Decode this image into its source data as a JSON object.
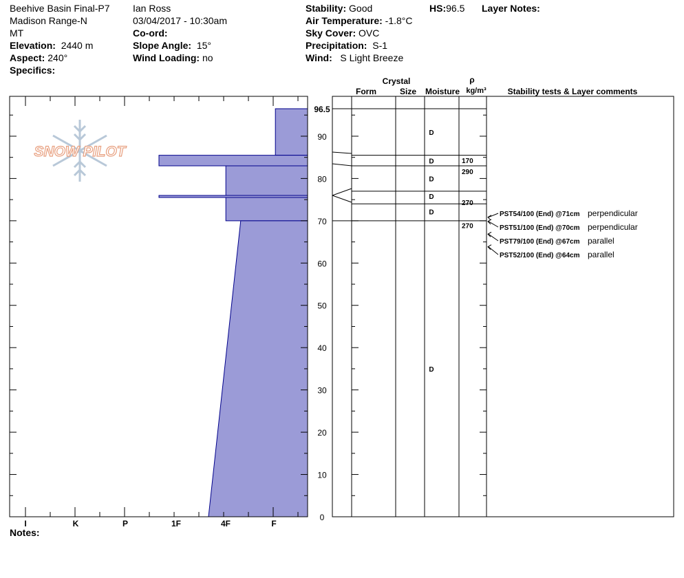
{
  "header": {
    "col1": {
      "site": "Beehive Basin Final-P7",
      "range": "Madison Range-N",
      "state": "MT",
      "elevation_label": "Elevation:",
      "elevation": "2440 m",
      "aspect_label": "Aspect:",
      "aspect": "240°",
      "specifics_label": "Specifics:"
    },
    "col2": {
      "observer": "Ian Ross",
      "datetime": "03/04/2017 - 10:30am",
      "coord_label": "Co-ord:",
      "slope_label": "Slope Angle:",
      "slope": "15°",
      "wind_loading_label": "Wind Loading:",
      "wind_loading": "no"
    },
    "col3": {
      "stability_label": "Stability:",
      "stability": "Good",
      "air_temp_label": "Air Temperature:",
      "air_temp": "-1.8°C",
      "sky_label": "Sky Cover:",
      "sky": "OVC",
      "precip_label": "Precipitation:",
      "precip": "S-1",
      "wind_label": "Wind:",
      "wind": "S Light Breeze"
    },
    "col4": {
      "hs_label": "HS:",
      "hs": "96.5",
      "layer_notes_label": "Layer Notes:"
    }
  },
  "logo": {
    "text": "SNOW PILOT",
    "color": "#e8a080"
  },
  "notes_label": "Notes:",
  "table_headers": {
    "crystal": "Crystal",
    "form": "Form",
    "size": "Size",
    "moisture": "Moisture",
    "rho": "ρ",
    "density_unit": "kg/m³",
    "comments": "Stability tests & Layer comments"
  },
  "colors": {
    "profile_fill": "#9b9bd7",
    "profile_stroke": "#00008b"
  },
  "chart_data": {
    "type": "area",
    "x_categories": [
      "I",
      "K",
      "P",
      "1F",
      "4F",
      "F"
    ],
    "y_ticks": [
      0,
      10,
      20,
      30,
      40,
      50,
      60,
      70,
      80,
      90
    ],
    "y_top_label": "96.5",
    "ylim": [
      0,
      96.5
    ],
    "hardness_layers": [
      {
        "top": 96.5,
        "bottom": 85.5,
        "hardness_top": 0.65,
        "hardness_bottom": 0.65
      },
      {
        "top": 85.5,
        "bottom": 83.0,
        "hardness_top": 3.0,
        "hardness_bottom": 3.0
      },
      {
        "top": 83.0,
        "bottom": 76.0,
        "hardness_top": 1.65,
        "hardness_bottom": 1.65
      },
      {
        "top": 76.0,
        "bottom": 75.5,
        "hardness_top": 3.0,
        "hardness_bottom": 3.0
      },
      {
        "top": 75.5,
        "bottom": 70.0,
        "hardness_top": 1.65,
        "hardness_bottom": 1.65
      },
      {
        "top": 70.0,
        "bottom": 0.0,
        "hardness_top": 1.35,
        "hardness_bottom": 2.0
      }
    ],
    "layer_boundaries": [
      96.5,
      85.5,
      83.0,
      77.0,
      74.0,
      70.0
    ],
    "moisture": [
      {
        "y": 91,
        "value": "D"
      },
      {
        "y": 84.2,
        "value": "D"
      },
      {
        "y": 80,
        "value": "D"
      },
      {
        "y": 75.8,
        "value": "D"
      },
      {
        "y": 72.2,
        "value": "D"
      },
      {
        "y": 35,
        "value": "D"
      }
    ],
    "density": [
      {
        "y": 84.3,
        "value": "170"
      },
      {
        "y": 81.7,
        "value": "290"
      },
      {
        "y": 74.4,
        "value": "270"
      },
      {
        "y": 68.9,
        "value": "270"
      }
    ],
    "stability_tests": [
      {
        "test": "PST54/100 (End) @71cm",
        "comment": "perpendicular",
        "depth": 71
      },
      {
        "test": "PST51/100 (End) @70cm",
        "comment": "perpendicular",
        "depth": 70
      },
      {
        "test": "PST79/100 (End) @67cm",
        "comment": "parallel",
        "depth": 67
      },
      {
        "test": "PST52/100 (End) @64cm",
        "comment": "parallel",
        "depth": 64
      }
    ]
  }
}
